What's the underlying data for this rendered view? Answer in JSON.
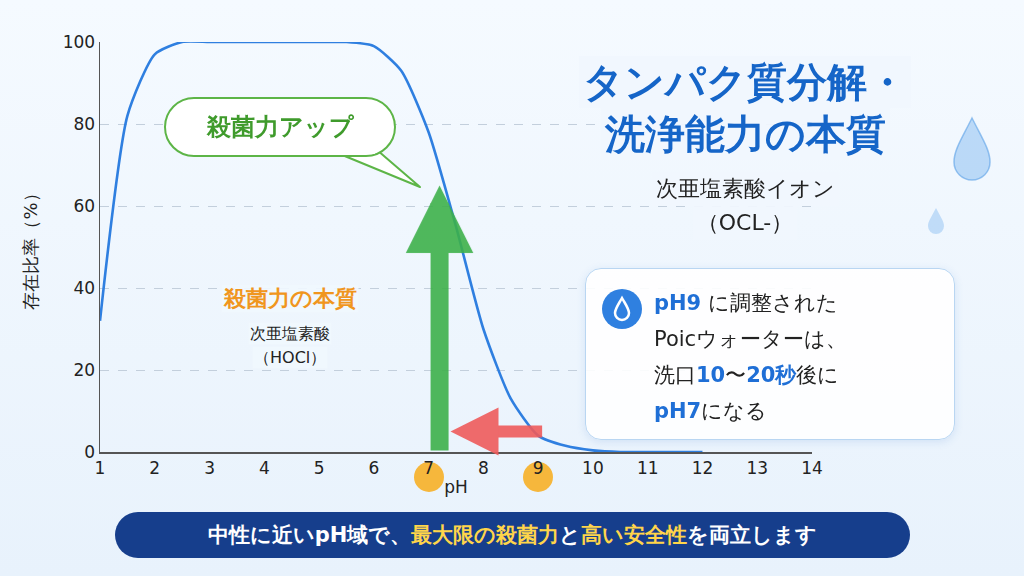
{
  "chart_data": {
    "type": "line",
    "x": [
      1,
      1.5,
      2,
      2.5,
      3,
      3.5,
      4,
      4.5,
      5,
      5.5,
      6,
      6.5,
      7,
      7.5,
      8,
      8.5,
      9,
      9.5,
      10,
      10.5,
      11,
      11.5,
      12
    ],
    "values": [
      32,
      82,
      97,
      100,
      100,
      100,
      100,
      100,
      100,
      100,
      99,
      93,
      78,
      55,
      30,
      13,
      4,
      1.5,
      0.4,
      0,
      0,
      0,
      0
    ],
    "color": "#2f7fe0",
    "line_style": "smooth",
    "xlim": [
      1,
      14
    ],
    "xticks": [
      1,
      2,
      3,
      4,
      5,
      6,
      7,
      8,
      9,
      10,
      11,
      12,
      13,
      14
    ],
    "ylim": [
      0,
      100
    ],
    "yticks": [
      0,
      20,
      40,
      60,
      80,
      100
    ],
    "x_label": "pH",
    "y_label": "存在比率（%）",
    "grid": true,
    "highlighted_xticks": [
      7,
      9
    ],
    "arrows": [
      {
        "x_from": 7.2,
        "y_from": 0,
        "x_to": 7.2,
        "y_to": 65,
        "color": "#3db04a"
      },
      {
        "x_from": 9.1,
        "y_from": 5,
        "x_to": 7.4,
        "y_to": 5,
        "color": "#ef5b5b"
      }
    ],
    "title": [
      "タンパク質分解・",
      "洗浄能力の本質"
    ],
    "subtitle": [
      "次亜塩素酸イオン",
      "（OCL-）"
    ],
    "callout": "殺菌力アップ",
    "curve_label": {
      "heading": "殺菌力の本質",
      "lines": [
        "次亜塩素酸",
        "（HOCl）"
      ]
    },
    "note": [
      [
        {
          "text": "pH9",
          "highlight": true
        },
        {
          "text": " に調整された"
        }
      ],
      [
        {
          "text": "Poicウォーターは、"
        }
      ],
      [
        {
          "text": "洗口"
        },
        {
          "text": "10",
          "highlight": true
        },
        {
          "text": "〜"
        },
        {
          "text": "20秒",
          "highlight": true
        },
        {
          "text": "後に"
        }
      ],
      [
        {
          "text": "pH7",
          "highlight": true
        },
        {
          "text": "になる"
        }
      ]
    ],
    "footer": [
      {
        "text": "中性に近いpH域で、"
      },
      {
        "text": "最大限の殺菌力",
        "highlight": true
      },
      {
        "text": "と"
      },
      {
        "text": "高い安全性",
        "highlight": true
      },
      {
        "text": "を両立します"
      }
    ]
  }
}
